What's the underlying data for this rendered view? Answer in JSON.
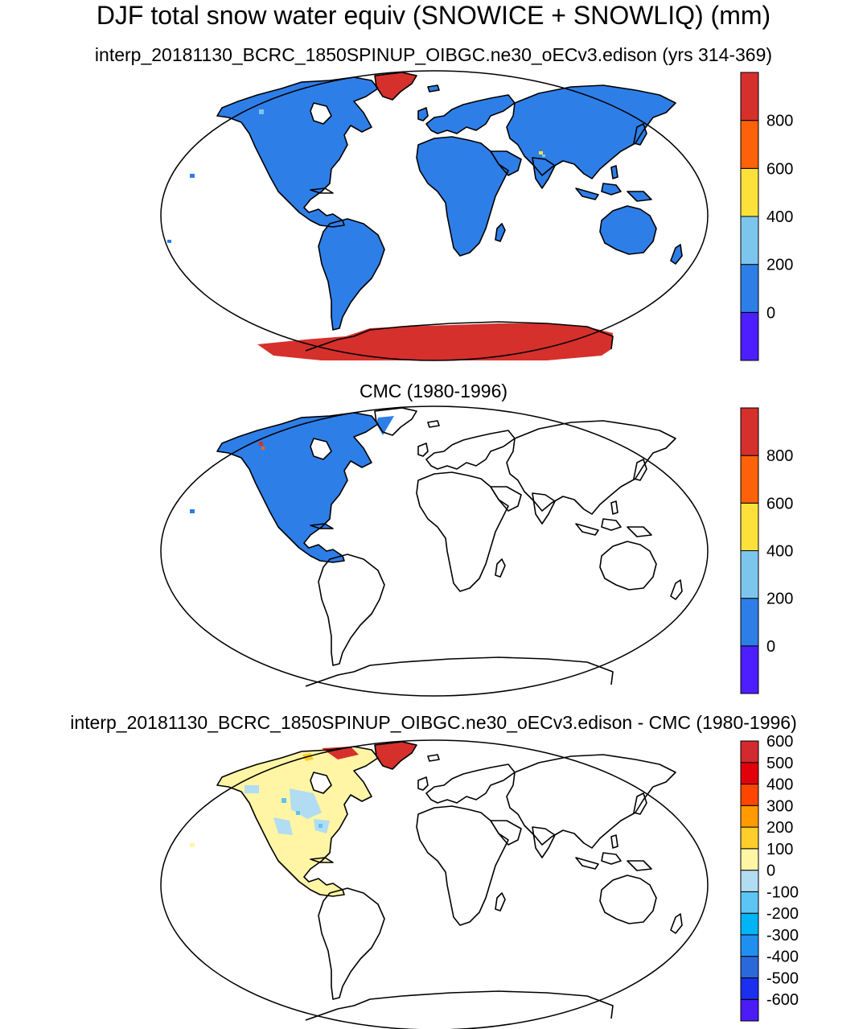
{
  "title": "DJF total snow water equiv (SNOWICE + SNOWLIQ) (mm)",
  "panels": [
    {
      "subtitle": "interp_20181130_BCRC_1850SPINUP_OIBGC.ne30_oECv3.edison (yrs 314-369)",
      "colorbar": {
        "colors": [
          "#4d1fff",
          "#2e7ee8",
          "#7cc6ee",
          "#fde13a",
          "#fb6209",
          "#d5302c"
        ],
        "labels": [
          "0",
          "200",
          "400",
          "600",
          "800"
        ]
      }
    },
    {
      "subtitle": "CMC (1980-1996)",
      "colorbar": {
        "colors": [
          "#4d1fff",
          "#2e7ee8",
          "#7cc6ee",
          "#fde13a",
          "#fb6209",
          "#d5302c"
        ],
        "labels": [
          "0",
          "200",
          "400",
          "600",
          "800"
        ]
      }
    },
    {
      "subtitle": "interp_20181130_BCRC_1850SPINUP_OIBGC.ne30_oECv3.edison - CMC (1980-1996)",
      "colorbar": {
        "colors": [
          "#4b1cf5",
          "#1b2fee",
          "#2a69d9",
          "#218fef",
          "#00b4f5",
          "#5cc5f3",
          "#b2dcf2",
          "#fff5a4",
          "#ffce2c",
          "#ff9a00",
          "#ff4600",
          "#e2000a",
          "#d22a2e"
        ],
        "labels": [
          "-600",
          "-500",
          "-400",
          "-300",
          "-200",
          "-100",
          "0",
          "100",
          "200",
          "300",
          "400",
          "500",
          "600"
        ]
      }
    }
  ],
  "legend_colors": {
    "land_swe_model": "#2e7ee8",
    "ice_sheet": "#d5302c",
    "diff_positive": "#fff5a4",
    "diff_negative": "#b2dcf2"
  }
}
